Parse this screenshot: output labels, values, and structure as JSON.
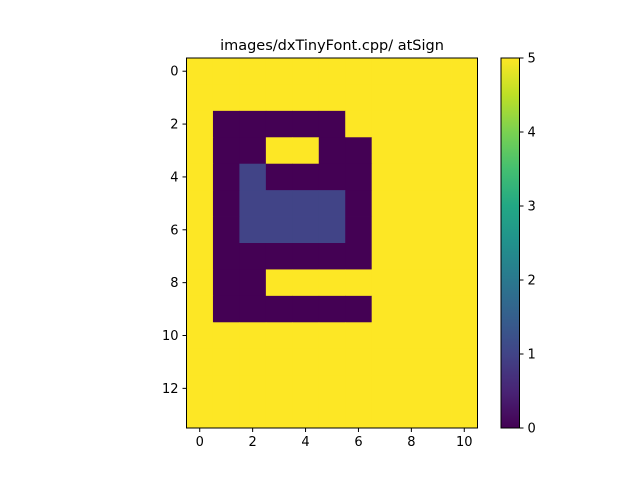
{
  "chart_data": {
    "type": "heatmap",
    "title": "images/dxTinyFont.cpp/ atSign",
    "xlabel": "",
    "ylabel": "",
    "x_ticks": [
      "0",
      "2",
      "4",
      "6",
      "8",
      "10"
    ],
    "y_ticks": [
      "0",
      "2",
      "4",
      "6",
      "8",
      "10",
      "12"
    ],
    "xlim": [
      -0.5,
      10.5
    ],
    "ylim": [
      13.5,
      -0.5
    ],
    "colormap": "viridis",
    "vmin": 0,
    "vmax": 5,
    "colorbar_ticks": [
      "0",
      "1",
      "2",
      "3",
      "4",
      "5"
    ],
    "rows": 14,
    "cols": 11,
    "values": [
      [
        5,
        5,
        5,
        5,
        5,
        5,
        5,
        5,
        5,
        5,
        5
      ],
      [
        5,
        5,
        5,
        5,
        5,
        5,
        5,
        5,
        5,
        5,
        5
      ],
      [
        5,
        0,
        0,
        0,
        0,
        0,
        5,
        5,
        5,
        5,
        5
      ],
      [
        5,
        0,
        0,
        5,
        5,
        0,
        0,
        5,
        5,
        5,
        5
      ],
      [
        5,
        0,
        1,
        0,
        0,
        0,
        0,
        5,
        5,
        5,
        5
      ],
      [
        5,
        0,
        1,
        1,
        1,
        1,
        0,
        5,
        5,
        5,
        5
      ],
      [
        5,
        0,
        1,
        1,
        1,
        1,
        0,
        5,
        5,
        5,
        5
      ],
      [
        5,
        0,
        0,
        0,
        0,
        0,
        0,
        5,
        5,
        5,
        5
      ],
      [
        5,
        0,
        0,
        5,
        5,
        5,
        5,
        5,
        5,
        5,
        5
      ],
      [
        5,
        0,
        0,
        0,
        0,
        0,
        0,
        5,
        5,
        5,
        5
      ],
      [
        5,
        5,
        5,
        5,
        5,
        5,
        5,
        5,
        5,
        5,
        5
      ],
      [
        5,
        5,
        5,
        5,
        5,
        5,
        5,
        5,
        5,
        5,
        5
      ],
      [
        5,
        5,
        5,
        5,
        5,
        5,
        5,
        5,
        5,
        5,
        5
      ],
      [
        5,
        5,
        5,
        5,
        5,
        5,
        5,
        5,
        5,
        5,
        5
      ]
    ]
  }
}
